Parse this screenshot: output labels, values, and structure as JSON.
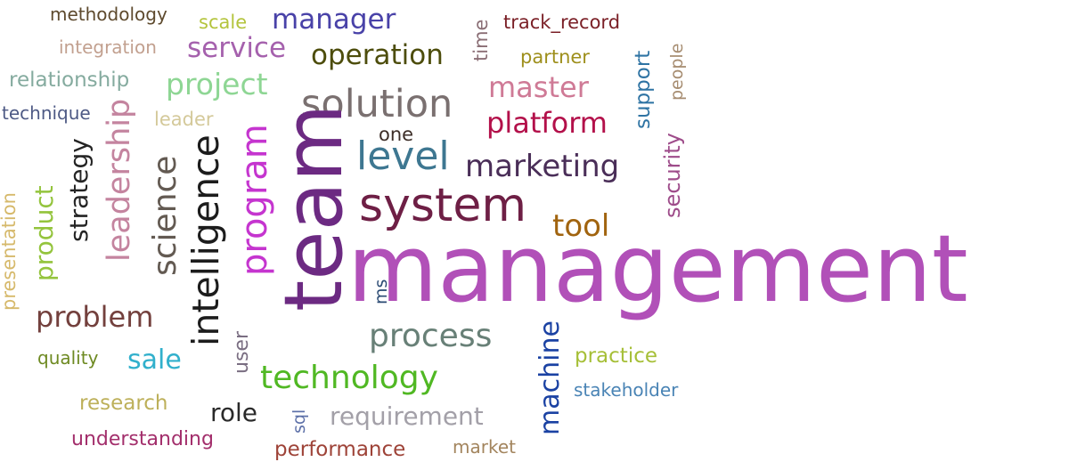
{
  "words": [
    {
      "text": "management",
      "color": "#b150b8"
    },
    {
      "text": "team",
      "color": "#6c2a82"
    },
    {
      "text": "system",
      "color": "#6e1f45"
    },
    {
      "text": "intelligence",
      "color": "#1c1c1c"
    },
    {
      "text": "program",
      "color": "#c535cf"
    },
    {
      "text": "solution",
      "color": "#7a7070"
    },
    {
      "text": "level",
      "color": "#3e7791"
    },
    {
      "text": "process",
      "color": "#688077"
    },
    {
      "text": "technology",
      "color": "#50b823"
    },
    {
      "text": "science",
      "color": "#635a52"
    },
    {
      "text": "marketing",
      "color": "#4a2e58"
    },
    {
      "text": "leadership",
      "color": "#c4849f"
    },
    {
      "text": "project",
      "color": "#8ed694"
    },
    {
      "text": "problem",
      "color": "#73403d"
    },
    {
      "text": "platform",
      "color": "#b3104a"
    },
    {
      "text": "master",
      "color": "#cf7a96"
    },
    {
      "text": "manager",
      "color": "#4942a8"
    },
    {
      "text": "operation",
      "color": "#4d4d0c"
    },
    {
      "text": "service",
      "color": "#a561ad"
    },
    {
      "text": "tool",
      "color": "#a1640f"
    },
    {
      "text": "machine",
      "color": "#1b42a3"
    },
    {
      "text": "requirement",
      "color": "#a3a0a8"
    },
    {
      "text": "sale",
      "color": "#31b0cc"
    },
    {
      "text": "strategy",
      "color": "#242424"
    },
    {
      "text": "product",
      "color": "#94c43d"
    },
    {
      "text": "role",
      "color": "#2a2a2a"
    },
    {
      "text": "performance",
      "color": "#9e4338"
    },
    {
      "text": "understanding",
      "color": "#a32f6c"
    },
    {
      "text": "research",
      "color": "#bdb05a"
    },
    {
      "text": "practice",
      "color": "#a6bf37"
    },
    {
      "text": "security",
      "color": "#9e4c8a"
    },
    {
      "text": "support",
      "color": "#2e73a3"
    },
    {
      "text": "relationship",
      "color": "#85ab9f"
    },
    {
      "text": "track_record",
      "color": "#7a1f26"
    },
    {
      "text": "methodology",
      "color": "#5e4a2e"
    },
    {
      "text": "integration",
      "color": "#c2a08f"
    },
    {
      "text": "technique",
      "color": "#4e5a85"
    },
    {
      "text": "presentation",
      "color": "#d6b96b"
    },
    {
      "text": "partner",
      "color": "#9e8f1c"
    },
    {
      "text": "stakeholder",
      "color": "#4a84b5"
    },
    {
      "text": "scale",
      "color": "#b4c43d"
    },
    {
      "text": "leader",
      "color": "#d4c99a"
    },
    {
      "text": "quality",
      "color": "#6e8a22"
    },
    {
      "text": "market",
      "color": "#a3855e"
    },
    {
      "text": "time",
      "color": "#8a6e75"
    },
    {
      "text": "user",
      "color": "#7a6e82"
    },
    {
      "text": "one",
      "color": "#3d2e28"
    },
    {
      "text": "people",
      "color": "#a68c70"
    },
    {
      "text": "sql",
      "color": "#5d70a8"
    },
    {
      "text": "ms",
      "color": "#2a4a73"
    }
  ]
}
